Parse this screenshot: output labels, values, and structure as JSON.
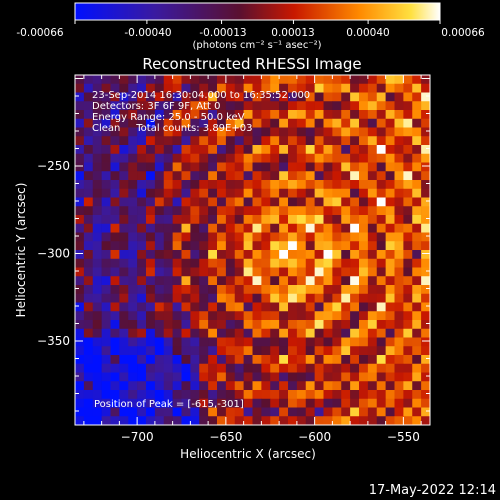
{
  "colorbar": {
    "ticks": [
      "-0.00066",
      "-0.00040",
      "-0.00013",
      "0.00013",
      "0.00040",
      "0.00066"
    ],
    "units": "(photons cm⁻² s⁻¹ asec⁻²)",
    "range": [
      -0.00066,
      0.00066
    ],
    "colormap": "blue-purple-red-orange-yellow-white"
  },
  "chart_data": {
    "type": "heatmap",
    "title": "Reconstructed RHESSI Image",
    "xlabel": "Heliocentric X (arcsec)",
    "ylabel": "Heliocentric Y (arcsec)",
    "xlim": [
      -735,
      -535
    ],
    "ylim": [
      -398,
      -198
    ],
    "xticks": [
      -700,
      -650,
      -600,
      -550
    ],
    "yticks": [
      -250,
      -300,
      -350
    ],
    "xtick_labels": [
      "−700",
      "−650",
      "−600",
      "−550"
    ],
    "ytick_labels": [
      "−250",
      "−300",
      "−350"
    ],
    "peak": {
      "x": -615,
      "y": -301
    },
    "annotations": [
      "23-Sep-2014 16:30:04.000 to 16:35:52.000",
      "Detectors: 3F 6F 9F, Att 0",
      "Energy Range: 25.0 - 50.0 keV",
      "Clean     Total counts: 3.89E+03"
    ],
    "peak_label": "Position of Peak = [-615,-301]"
  },
  "footer": {
    "timestamp": "17-May-2022 12:14"
  },
  "colors": {
    "background": "#000000",
    "axes": "#ffffff"
  }
}
